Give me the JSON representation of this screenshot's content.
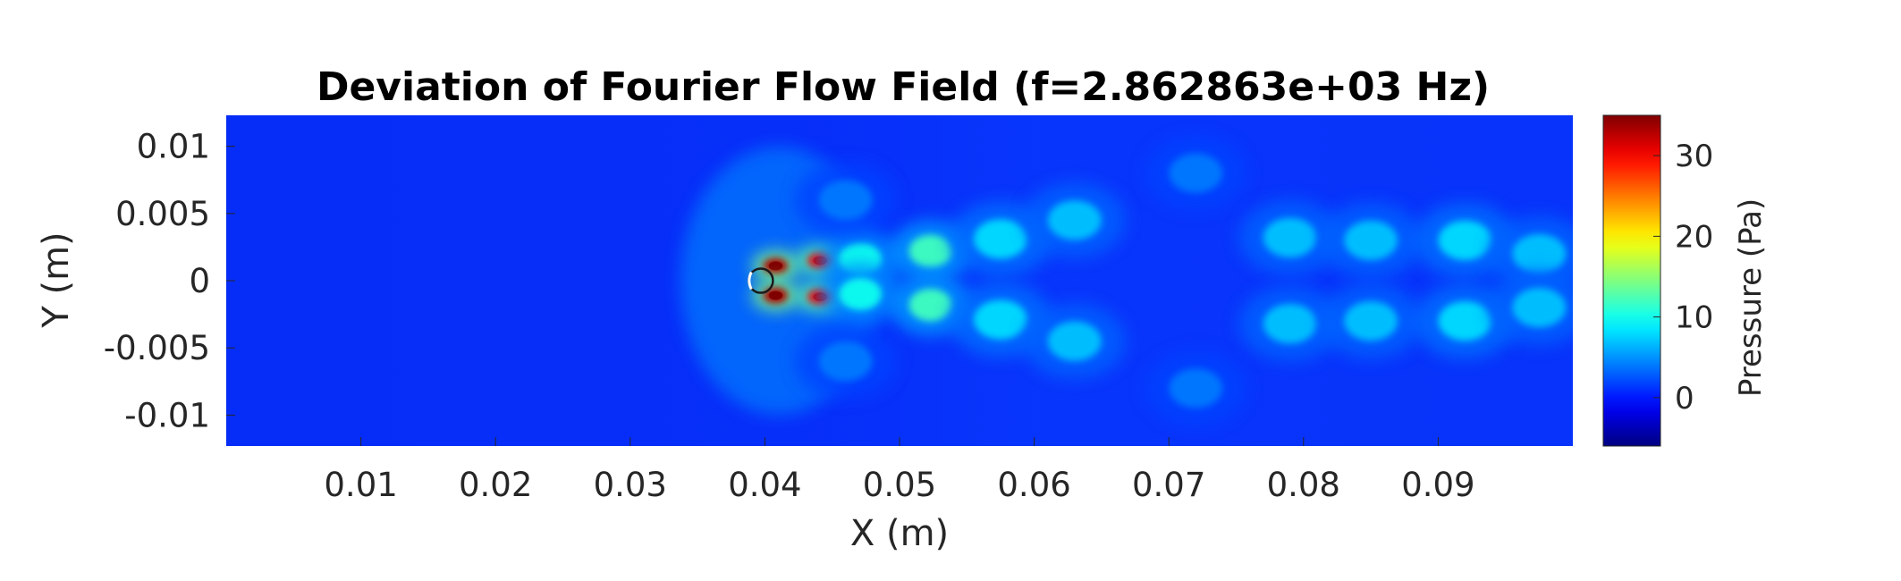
{
  "chart_data": {
    "type": "heatmap",
    "title": "Deviation of Fourier Flow Field (f=2.862863e+03 Hz)",
    "xlabel": "X (m)",
    "ylabel": "Y (m)",
    "xlim": [
      0,
      0.1
    ],
    "ylim": [
      -0.0123,
      0.0123
    ],
    "xticks": [
      0.01,
      0.02,
      0.03,
      0.04,
      0.05,
      0.06,
      0.07,
      0.08,
      0.09
    ],
    "xtick_labels": [
      "0.01",
      "0.02",
      "0.03",
      "0.04",
      "0.05",
      "0.06",
      "0.07",
      "0.08",
      "0.09"
    ],
    "yticks": [
      0.01,
      0.005,
      0,
      -0.005,
      -0.01
    ],
    "ytick_labels": [
      "0.01",
      "0.005",
      "0",
      "-0.005",
      "-0.01"
    ],
    "colormap": "jet",
    "colorbar": {
      "label": "Pressure (Pa)",
      "clim": [
        -6,
        35
      ],
      "ticks": [
        30,
        20,
        10,
        0
      ],
      "tick_labels": [
        "30",
        "20",
        "10",
        "0"
      ]
    },
    "background_value": 0,
    "grid": false,
    "obstacle": {
      "shape": "cylinder",
      "center": [
        0.0397,
        0
      ],
      "radius": 0.0009
    },
    "field_features": [
      {
        "x": 0.0408,
        "y": 0.0011,
        "value": 33
      },
      {
        "x": 0.0408,
        "y": -0.0011,
        "value": 33
      },
      {
        "x": 0.0441,
        "y": 0.0015,
        "value": 30
      },
      {
        "x": 0.0441,
        "y": -0.0012,
        "value": 30
      },
      {
        "x": 0.0471,
        "y": 0.0016,
        "value": 10
      },
      {
        "x": 0.0471,
        "y": -0.001,
        "value": 10
      },
      {
        "x": 0.0523,
        "y": 0.0022,
        "value": 12
      },
      {
        "x": 0.0523,
        "y": -0.0018,
        "value": 12
      },
      {
        "x": 0.0575,
        "y": 0.0031,
        "value": 8
      },
      {
        "x": 0.0575,
        "y": -0.0029,
        "value": 8
      },
      {
        "x": 0.063,
        "y": 0.0045,
        "value": 7
      },
      {
        "x": 0.063,
        "y": -0.0045,
        "value": 7
      },
      {
        "x": 0.079,
        "y": 0.0032,
        "value": 7
      },
      {
        "x": 0.079,
        "y": -0.0032,
        "value": 7
      },
      {
        "x": 0.085,
        "y": 0.003,
        "value": 7
      },
      {
        "x": 0.085,
        "y": -0.003,
        "value": 7
      },
      {
        "x": 0.092,
        "y": 0.003,
        "value": 8
      },
      {
        "x": 0.092,
        "y": -0.003,
        "value": 8
      },
      {
        "x": 0.0975,
        "y": 0.002,
        "value": 7
      },
      {
        "x": 0.0975,
        "y": -0.002,
        "value": 7
      },
      {
        "x": 0.046,
        "y": 0.006,
        "value": 4
      },
      {
        "x": 0.046,
        "y": -0.006,
        "value": 4
      },
      {
        "x": 0.072,
        "y": 0.008,
        "value": 4
      },
      {
        "x": 0.072,
        "y": -0.008,
        "value": 4
      }
    ]
  }
}
